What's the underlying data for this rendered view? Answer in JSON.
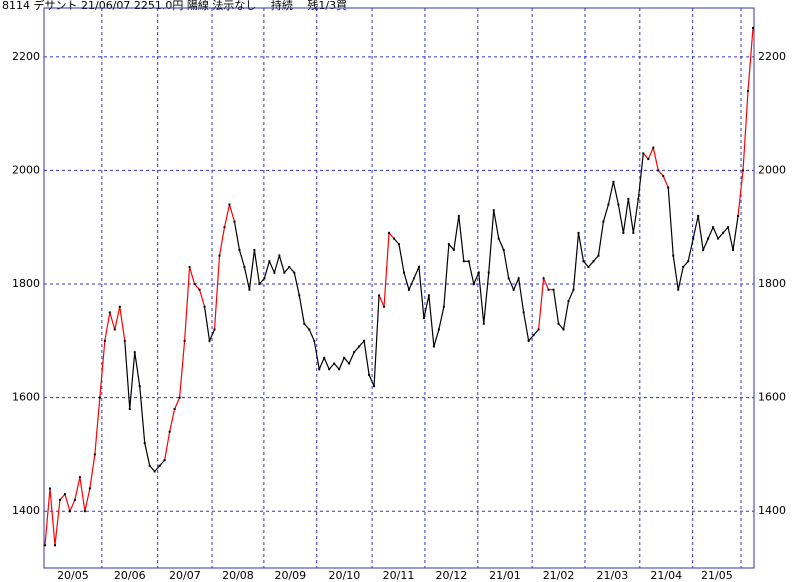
{
  "chart_data": {
    "type": "line",
    "title": "8114 デサント 21/06/07 2251.0円 陽線 法示なし　 持続 　残1/3買",
    "values": [
      1340,
      1440,
      1340,
      1420,
      1430,
      1400,
      1420,
      1460,
      1400,
      1440,
      1500,
      1600,
      1700,
      1750,
      1720,
      1760,
      1700,
      1580,
      1680,
      1620,
      1520,
      1480,
      1470,
      1480,
      1490,
      1540,
      1580,
      1600,
      1700,
      1830,
      1800,
      1790,
      1760,
      1700,
      1720,
      1850,
      1900,
      1940,
      1910,
      1860,
      1830,
      1790,
      1860,
      1800,
      1810,
      1840,
      1820,
      1850,
      1820,
      1830,
      1820,
      1780,
      1730,
      1720,
      1700,
      1650,
      1670,
      1650,
      1660,
      1650,
      1670,
      1660,
      1680,
      1690,
      1700,
      1640,
      1620,
      1780,
      1760,
      1890,
      1880,
      1870,
      1820,
      1790,
      1810,
      1830,
      1740,
      1780,
      1690,
      1720,
      1760,
      1870,
      1860,
      1920,
      1840,
      1840,
      1800,
      1820,
      1730,
      1820,
      1930,
      1880,
      1860,
      1810,
      1790,
      1810,
      1750,
      1700,
      1710,
      1720,
      1810,
      1790,
      1790,
      1730,
      1720,
      1770,
      1790,
      1890,
      1840,
      1830,
      1840,
      1850,
      1910,
      1940,
      1980,
      1940,
      1890,
      1950,
      1890,
      1950,
      2030,
      2020,
      2040,
      2000,
      1990,
      1970,
      1850,
      1790,
      1830,
      1840,
      1880,
      1920,
      1860,
      1880,
      1900,
      1880,
      1890,
      1900,
      1860,
      1920,
      2000,
      2140,
      2251
    ],
    "color_runs": [
      {
        "start": 0,
        "color": "#ff0000"
      },
      {
        "start": 16,
        "color": "#000000"
      },
      {
        "start": 24,
        "color": "#ff0000"
      },
      {
        "start": 32,
        "color": "#000000"
      },
      {
        "start": 34,
        "color": "#ff0000"
      },
      {
        "start": 38,
        "color": "#000000"
      },
      {
        "start": 67,
        "color": "#ff0000"
      },
      {
        "start": 70,
        "color": "#000000"
      },
      {
        "start": 99,
        "color": "#ff0000"
      },
      {
        "start": 102,
        "color": "#000000"
      },
      {
        "start": 120,
        "color": "#ff0000"
      },
      {
        "start": 125,
        "color": "#000000"
      },
      {
        "start": 139,
        "color": "#ff0000"
      }
    ],
    "xlim": [
      -0.2,
      142.2
    ],
    "xticks": [
      11.4,
      22.6,
      33.5,
      43.9,
      54.5,
      65.6,
      76.2,
      86.8,
      97.7,
      108.3,
      119.3,
      129.9,
      139.6
    ],
    "month_labels": [
      "20/05",
      "20/06",
      "20/07",
      "20/08",
      "20/09",
      "20/10",
      "20/11",
      "20/12",
      "21/01",
      "21/02",
      "21/03",
      "21/04",
      "21/05"
    ],
    "ylim": [
      1300,
      2286
    ],
    "yticks": [
      1400,
      1600,
      1800,
      2000,
      2200
    ],
    "grid": true,
    "grid_color": "#3333cc",
    "frame_color": "#3333aa"
  }
}
